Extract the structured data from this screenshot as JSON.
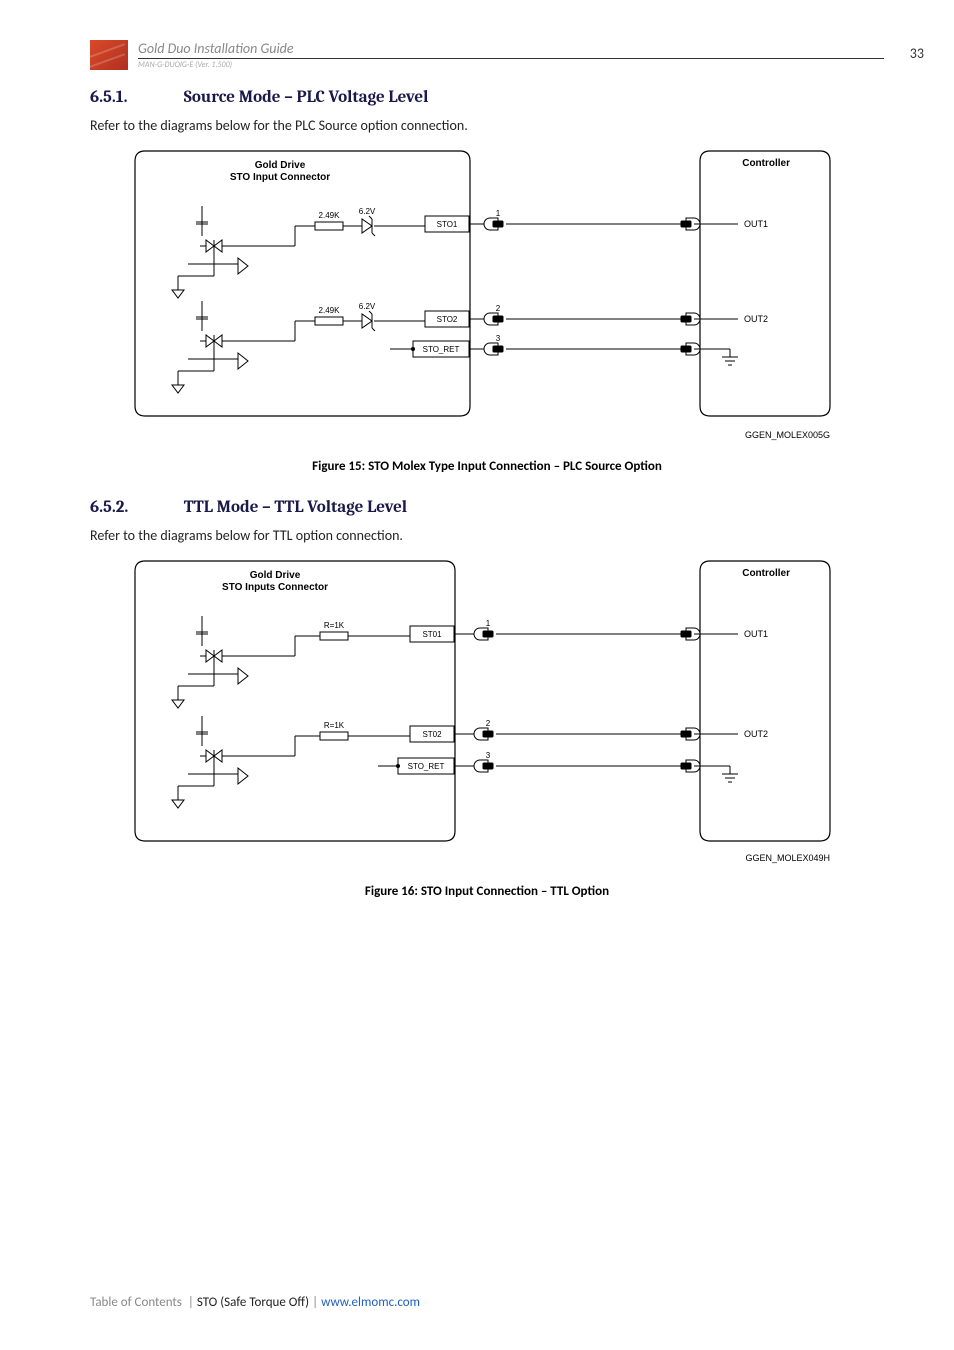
{
  "header": {
    "title": "Gold Duo Installation Guide",
    "sub": "MAN-G-DUOIG-E (Ver. 1.500)",
    "page_number": "33"
  },
  "section1": {
    "num": "6.5.1.",
    "title": "Source Mode – PLC Voltage Level",
    "intro": "Refer to the diagrams below for the PLC Source option connection.",
    "caption": "Figure 15: STO Molex Type Input Connection – PLC Source Option"
  },
  "section2": {
    "num": "6.5.2.",
    "title": "TTL Mode – TTL Voltage Level",
    "intro": "Refer to the diagrams below for TTL option connection.",
    "caption": "Figure 16: STO Input Connection – TTL Option"
  },
  "diagram1": {
    "driveLabel": "Gold Drive",
    "driveSubLabel": "STO Input Connector",
    "controllerLabel": "Controller",
    "resistorValue": "2.49K",
    "zenerValue": "6.2V",
    "sig1": "STO1",
    "sig2": "STO2",
    "sigRet": "STO_RET",
    "out1": "OUT1",
    "out2": "OUT2",
    "pin1": "1",
    "pin2": "2",
    "pin3": "3",
    "partLabel": "GGEN_MOLEX005G",
    "colors": {
      "border": "#000000",
      "text": "#000000",
      "line": "#000000",
      "fill": "#000000"
    },
    "fontsize": 9
  },
  "diagram2": {
    "driveLabel": "Gold Drive",
    "driveSubLabel": "STO Inputs Connector",
    "controllerLabel": "Controller",
    "resistorValue": "R=1K",
    "sig1": "ST01",
    "sig2": "ST02",
    "sigRet": "STO_RET",
    "out1": "OUT1",
    "out2": "OUT2",
    "pin1": "1",
    "pin2": "2",
    "pin3": "3",
    "partLabel": "GGEN_MOLEX049H",
    "colors": {
      "border": "#000000",
      "text": "#000000",
      "line": "#000000",
      "fill": "#000000"
    },
    "fontsize": 9
  },
  "footer": {
    "toc": "Table of Contents",
    "chapter": "STO (Safe Torque Off)",
    "url": "www.elmomc.com"
  }
}
